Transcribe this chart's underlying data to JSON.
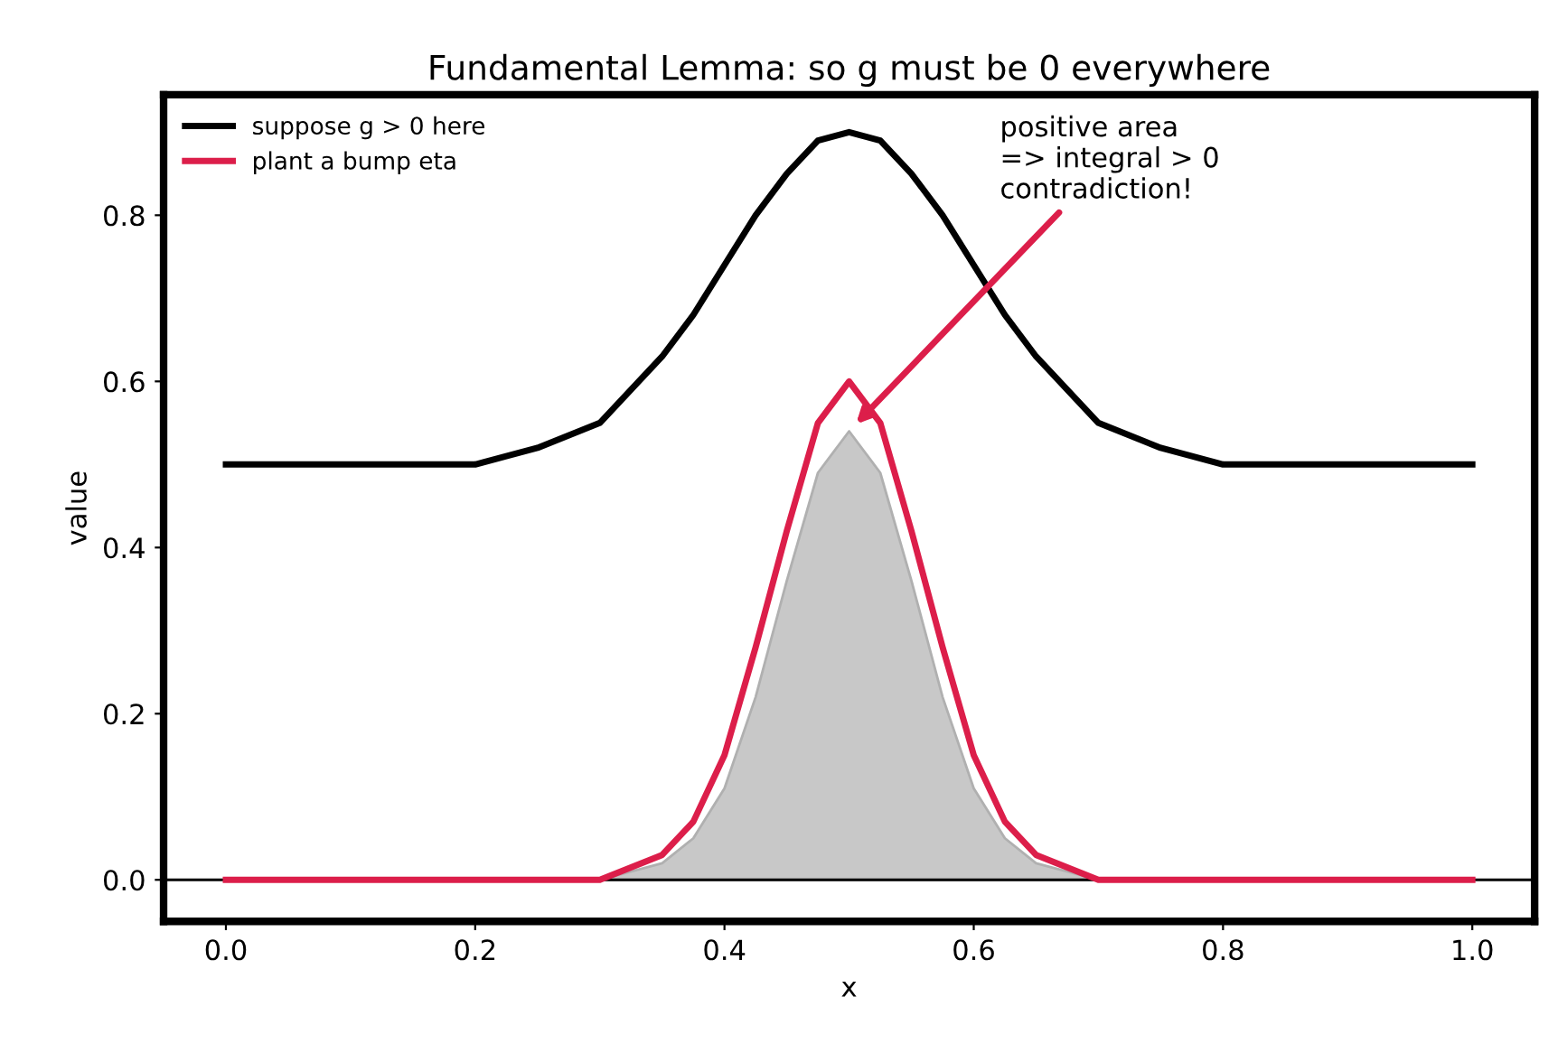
{
  "chart_data": {
    "type": "line",
    "title": "Fundamental Lemma: so g must be 0 everywhere",
    "xlabel": "x",
    "ylabel": "value",
    "x": [
      0,
      0.1,
      0.2,
      0.25,
      0.3,
      0.35,
      0.375,
      0.4,
      0.425,
      0.45,
      0.475,
      0.5,
      0.525,
      0.55,
      0.575,
      0.6,
      0.625,
      0.65,
      0.7,
      0.75,
      0.8,
      0.9,
      1.0
    ],
    "series": [
      {
        "name": "suppose g > 0 here",
        "color": "#000000",
        "values": [
          0.5,
          0.5,
          0.5,
          0.52,
          0.55,
          0.63,
          0.68,
          0.74,
          0.8,
          0.85,
          0.89,
          0.9,
          0.89,
          0.85,
          0.8,
          0.74,
          0.68,
          0.63,
          0.55,
          0.52,
          0.5,
          0.5,
          0.5
        ]
      },
      {
        "name": "plant a bump eta",
        "color": "#dc1e4a",
        "values": [
          0,
          0,
          0,
          0,
          0,
          0.03,
          0.07,
          0.15,
          0.28,
          0.42,
          0.55,
          0.6,
          0.55,
          0.42,
          0.28,
          0.15,
          0.07,
          0.03,
          0,
          0,
          0,
          0,
          0
        ]
      },
      {
        "color": "#c8c8c8",
        "type": "area",
        "values": [
          0,
          0,
          0,
          0,
          0,
          0.02,
          0.05,
          0.11,
          0.22,
          0.36,
          0.49,
          0.54,
          0.49,
          0.36,
          0.22,
          0.11,
          0.05,
          0.02,
          0,
          0,
          0,
          0,
          0
        ]
      }
    ],
    "xlim": [
      -0.05,
      1.05
    ],
    "ylim": [
      -0.05,
      0.945
    ],
    "xticks": [
      {
        "value": 0,
        "label": "0.0"
      },
      0.2,
      0.4,
      0.6,
      0.8,
      {
        "value": 1,
        "label": "1.0"
      }
    ],
    "yticks": [
      {
        "value": 0,
        "label": "0.0"
      },
      0.2,
      0.4,
      0.6,
      0.8
    ],
    "ref_lines": [
      {
        "axis": "y",
        "value": 0,
        "color": "#000000"
      }
    ],
    "annotations": [
      "positive area\n=> integral > 0\ncontradiction!"
    ],
    "legend": "top left",
    "grid": false
  }
}
